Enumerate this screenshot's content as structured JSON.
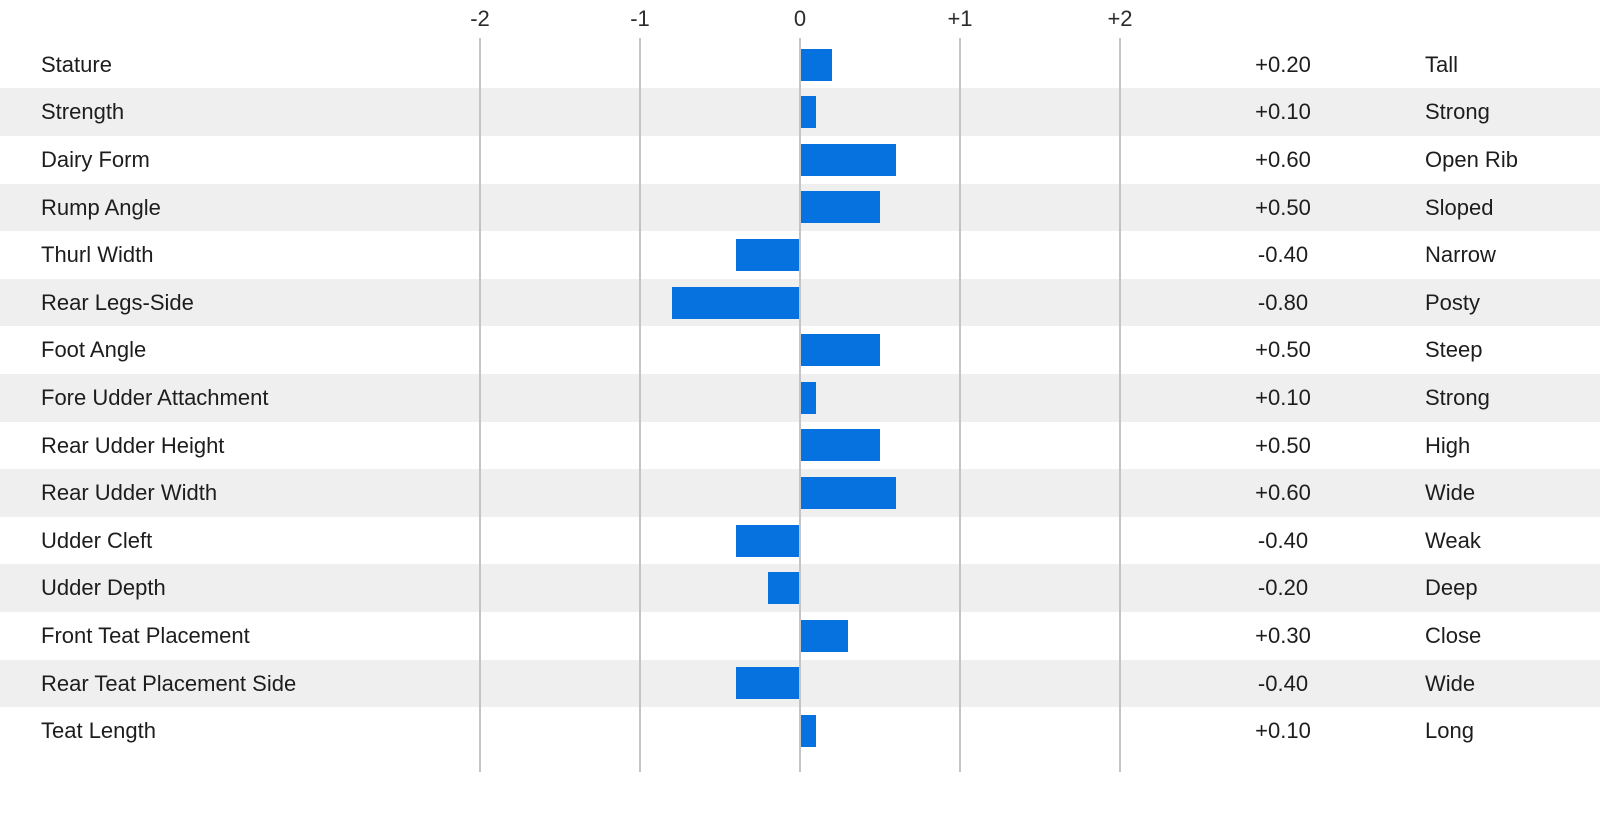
{
  "chart_data": {
    "type": "bar",
    "orientation": "horizontal",
    "title": "",
    "axis": {
      "tick_labels": [
        "-2",
        "-1",
        "0",
        "+1",
        "+2"
      ],
      "tick_values": [
        -2,
        -1,
        0,
        1,
        2
      ],
      "range": [
        -2,
        2
      ],
      "grid": "vertical-lines"
    },
    "rows": [
      {
        "trait": "Stature",
        "value": 0.2,
        "value_label": "+0.20",
        "descriptor": "Tall"
      },
      {
        "trait": "Strength",
        "value": 0.1,
        "value_label": "+0.10",
        "descriptor": "Strong"
      },
      {
        "trait": "Dairy Form",
        "value": 0.6,
        "value_label": "+0.60",
        "descriptor": "Open Rib"
      },
      {
        "trait": "Rump Angle",
        "value": 0.5,
        "value_label": "+0.50",
        "descriptor": "Sloped"
      },
      {
        "trait": "Thurl Width",
        "value": -0.4,
        "value_label": "-0.40",
        "descriptor": "Narrow"
      },
      {
        "trait": "Rear Legs-Side",
        "value": -0.8,
        "value_label": "-0.80",
        "descriptor": "Posty"
      },
      {
        "trait": "Foot Angle",
        "value": 0.5,
        "value_label": "+0.50",
        "descriptor": "Steep"
      },
      {
        "trait": "Fore Udder Attachment",
        "value": 0.1,
        "value_label": "+0.10",
        "descriptor": "Strong"
      },
      {
        "trait": "Rear Udder Height",
        "value": 0.5,
        "value_label": "+0.50",
        "descriptor": "High"
      },
      {
        "trait": "Rear Udder Width",
        "value": 0.6,
        "value_label": "+0.60",
        "descriptor": "Wide"
      },
      {
        "trait": "Udder Cleft",
        "value": -0.4,
        "value_label": "-0.40",
        "descriptor": "Weak"
      },
      {
        "trait": "Udder Depth",
        "value": -0.2,
        "value_label": "-0.20",
        "descriptor": "Deep"
      },
      {
        "trait": "Front Teat Placement",
        "value": 0.3,
        "value_label": "+0.30",
        "descriptor": "Close"
      },
      {
        "trait": "Rear Teat Placement Side",
        "value": -0.4,
        "value_label": "-0.40",
        "descriptor": "Wide"
      },
      {
        "trait": "Teat Length",
        "value": 0.1,
        "value_label": "+0.10",
        "descriptor": "Long"
      }
    ],
    "colors": {
      "bar": "#0572e0",
      "stripe": "#efefef",
      "gridline": "#c4c4c4",
      "text": "#1d1d1f"
    }
  }
}
